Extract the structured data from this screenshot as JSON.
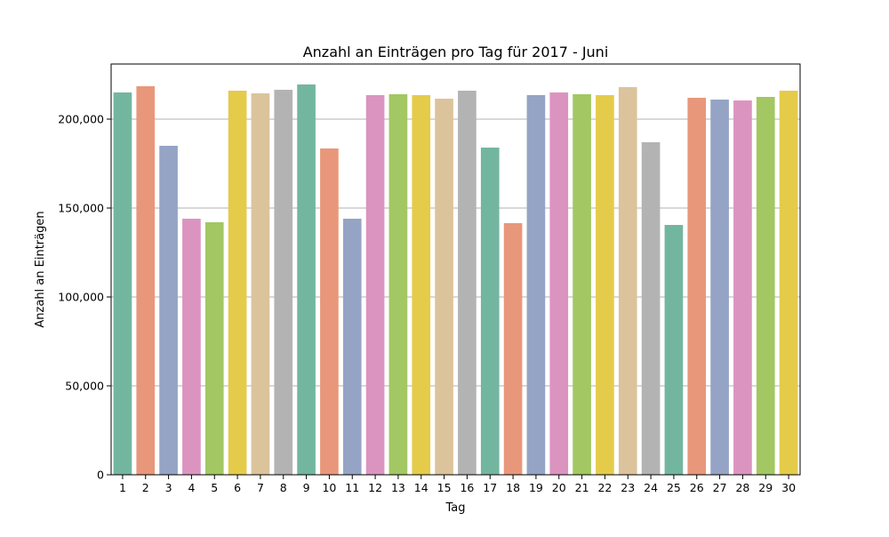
{
  "chart_data": {
    "type": "bar",
    "title": "Anzahl an Einträgen pro Tag für 2017 - Juni",
    "xlabel": "Tag",
    "ylabel": "Anzahl an Einträgen",
    "categories": [
      "1",
      "2",
      "3",
      "4",
      "5",
      "6",
      "7",
      "8",
      "9",
      "10",
      "11",
      "12",
      "13",
      "14",
      "15",
      "16",
      "17",
      "18",
      "19",
      "20",
      "21",
      "22",
      "23",
      "24",
      "25",
      "26",
      "27",
      "28",
      "29",
      "30"
    ],
    "values": [
      215000,
      218500,
      185000,
      144000,
      142000,
      216000,
      214500,
      216500,
      219500,
      183500,
      144000,
      213500,
      214000,
      213500,
      211500,
      216000,
      184000,
      141500,
      213500,
      215000,
      214000,
      213500,
      218000,
      187000,
      140500,
      212000,
      211000,
      210500,
      212500,
      216000
    ],
    "ylim": [
      0,
      231000
    ],
    "yticks": [
      0,
      50000,
      100000,
      150000,
      200000
    ],
    "ytick_labels": [
      "0",
      "50,000",
      "100,000",
      "150,000",
      "200,000"
    ],
    "grid": "y",
    "palette": [
      "#73b6a0",
      "#e9977a",
      "#95a4c4",
      "#db94c0",
      "#a3c762",
      "#e5cb4a",
      "#dbc39c",
      "#b3b3b3"
    ]
  }
}
